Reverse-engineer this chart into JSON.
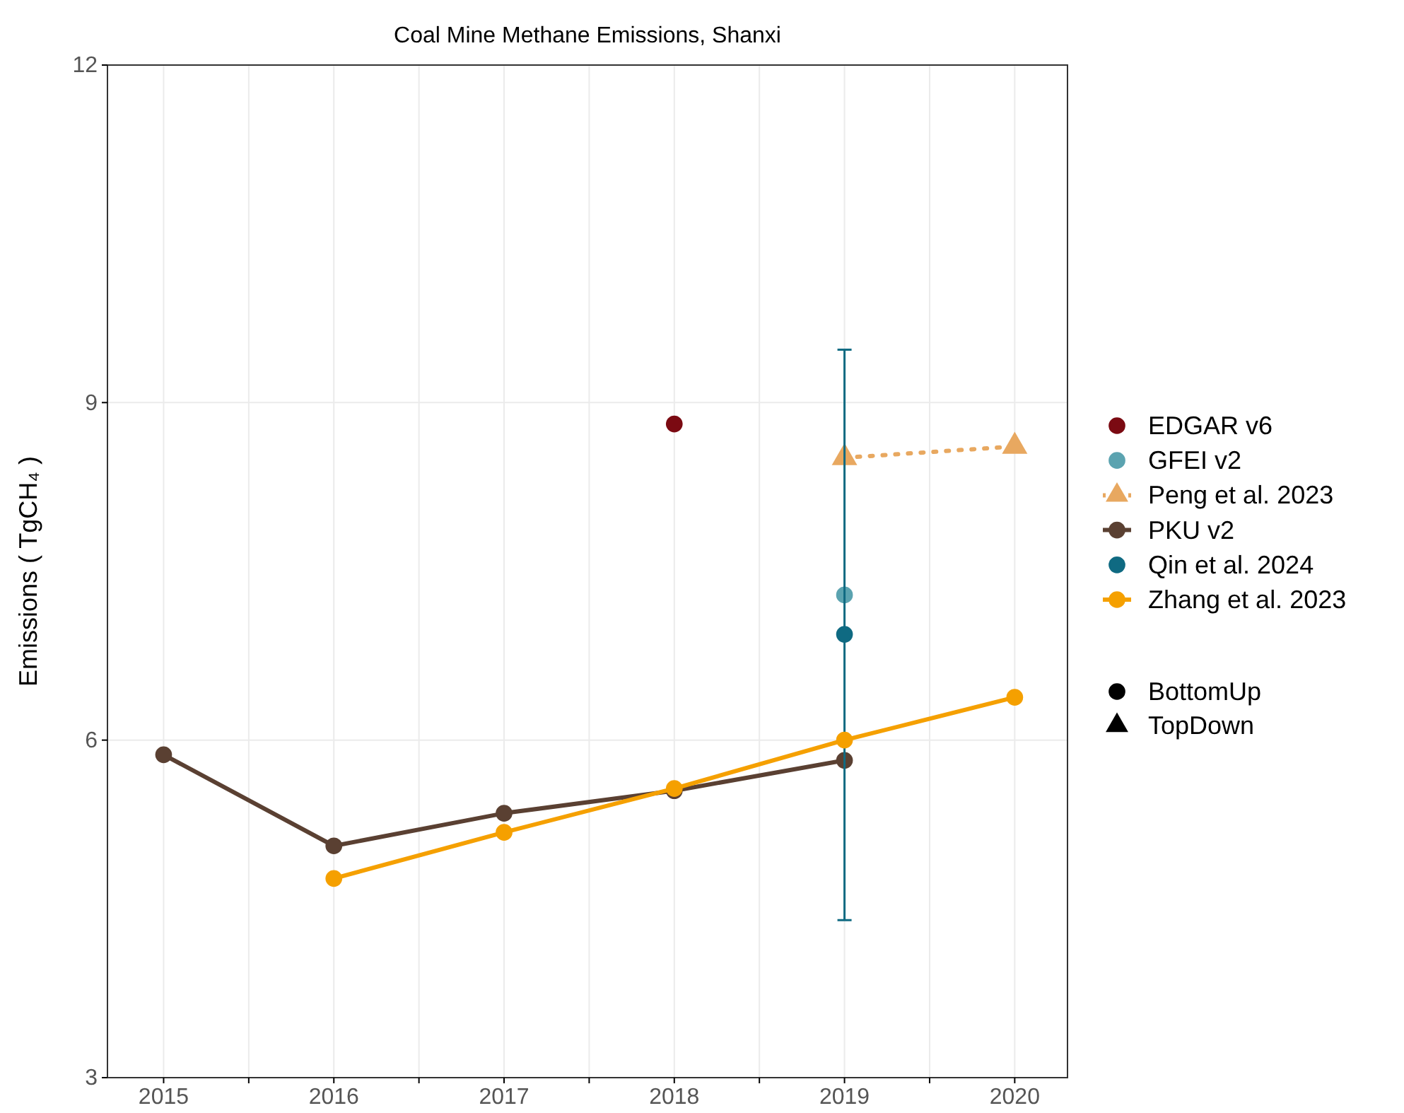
{
  "chart_data": {
    "type": "line",
    "title": "Coal Mine Methane Emissions, Shanxi",
    "ylabel": "Emissions ( TgCH₄ )",
    "xlim": [
      2014.67,
      2020.31
    ],
    "xticks": [
      2015,
      {
        "value": 2015.5,
        "label": null
      },
      2016,
      {
        "value": 2016.5,
        "label": null
      },
      2017,
      {
        "value": 2017.5,
        "label": null
      },
      2018,
      {
        "value": 2018.5,
        "label": null
      },
      2019,
      {
        "value": 2019.5,
        "label": null
      },
      2020
    ],
    "ylim": [
      3,
      12
    ],
    "yticks": [
      3,
      6,
      9,
      12
    ],
    "grid": true,
    "legend": "right",
    "series": [
      {
        "name": "EDGAR v6",
        "type": "scatter",
        "marker": "circle",
        "color": "#7b0a12",
        "x": [
          2018
        ],
        "values": [
          8.81
        ]
      },
      {
        "name": "GFEI v2",
        "type": "scatter",
        "marker": "circle",
        "color": "#5ba3b0",
        "x": [
          2019
        ],
        "values": [
          7.29
        ]
      },
      {
        "name": "Peng et al. 2023",
        "type": "line",
        "marker": "triangle",
        "line_style": "dotted",
        "color": "#e8a860",
        "x": [
          2019,
          2020
        ],
        "values": [
          8.51,
          8.61
        ]
      },
      {
        "name": "PKU v2",
        "type": "line",
        "marker": "circle",
        "line_style": "solid",
        "color": "#5a4032",
        "x": [
          2015,
          2016,
          2017,
          2018,
          2019
        ],
        "values": [
          5.87,
          5.06,
          5.35,
          5.55,
          5.82
        ]
      },
      {
        "name": "Qin et al. 2024",
        "type": "scatter",
        "marker": "circle",
        "color": "#0f6a82",
        "x": [
          2019
        ],
        "values": [
          6.94
        ],
        "errors": [
          [
            4.4,
            9.47
          ]
        ]
      },
      {
        "name": "Zhang et al. 2023",
        "type": "line",
        "marker": "circle",
        "line_style": "solid",
        "color": "#f5a000",
        "x": [
          2016,
          2017,
          2018,
          2019,
          2020
        ],
        "values": [
          4.77,
          5.18,
          5.57,
          6.0,
          6.38
        ]
      }
    ],
    "annotations": [
      "BottomUp",
      "TopDown"
    ]
  }
}
